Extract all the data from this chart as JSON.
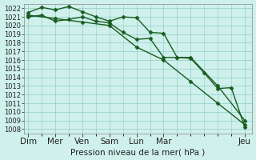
{
  "title": "Pression niveau de la mer( hPa )",
  "bg_color": "#cff0eb",
  "grid_color": "#8ecec7",
  "line_color": "#1a5c20",
  "ylim": [
    1007.5,
    1022.5
  ],
  "yticks": [
    1008,
    1009,
    1010,
    1011,
    1012,
    1013,
    1014,
    1015,
    1016,
    1017,
    1018,
    1019,
    1020,
    1021,
    1022
  ],
  "x_major_ticks": [
    0,
    2,
    4,
    6,
    8,
    10,
    16
  ],
  "x_major_labels": [
    "Dim",
    "Mer",
    "Ven",
    "Sam",
    "Lun",
    "Mar",
    "Jeu"
  ],
  "xlim": [
    -0.3,
    16.5
  ],
  "line1_x": [
    0,
    1,
    2,
    3,
    4,
    5,
    6,
    7,
    8,
    9,
    10,
    11,
    12,
    14,
    16
  ],
  "line1_y": [
    1021.5,
    1022.1,
    1021.8,
    1022.2,
    1021.6,
    1021.0,
    1020.5,
    1021.0,
    1020.9,
    1019.2,
    1019.1,
    1016.3,
    1016.3,
    1013.0,
    1009.0
  ],
  "line2_x": [
    0,
    1,
    2,
    3,
    4,
    5,
    6,
    7,
    8,
    9,
    10,
    11,
    12,
    13,
    14,
    15,
    16
  ],
  "line2_y": [
    1021.0,
    1021.2,
    1020.5,
    1020.7,
    1021.0,
    1020.5,
    1020.3,
    1019.2,
    1018.4,
    1018.5,
    1016.3,
    1016.3,
    1016.2,
    1014.5,
    1012.7,
    1012.8,
    1008.2
  ],
  "line3_x": [
    0,
    2,
    4,
    6,
    8,
    10,
    12,
    14,
    16
  ],
  "line3_y": [
    1021.2,
    1020.8,
    1020.4,
    1020.0,
    1017.5,
    1016.0,
    1013.5,
    1011.0,
    1008.5
  ],
  "marker": "D",
  "markersize": 2.5,
  "linewidth": 1.0,
  "tick_fontsize": 6.0,
  "xlabel_fontsize": 7.5
}
